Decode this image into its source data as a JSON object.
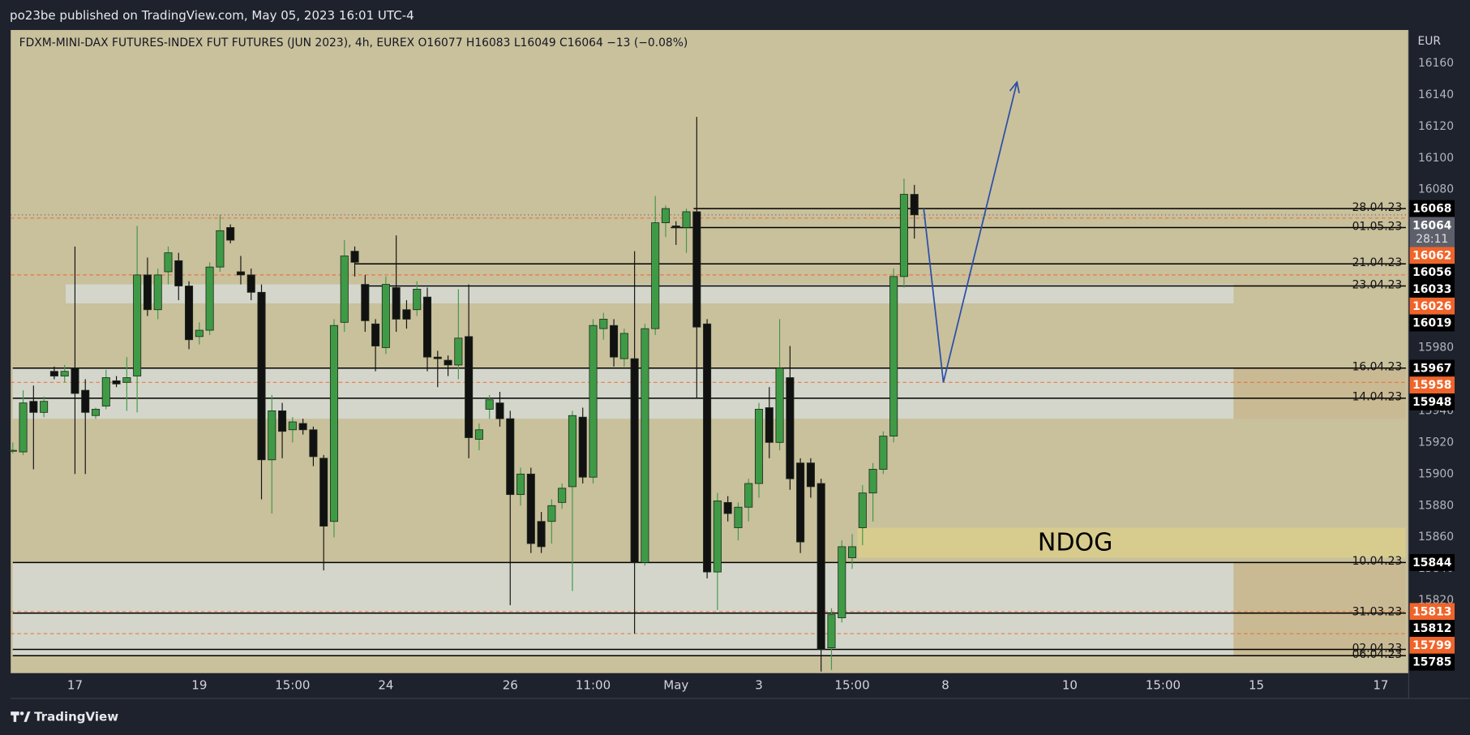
{
  "header": {
    "publisher": "po23be published on TradingView.com, May 05, 2023 16:01 UTC-4",
    "brand": "TradingView"
  },
  "chart_data": {
    "type": "candlestick",
    "title": "FDXM-MINI-DAX FUTURES-INDEX FUT FUTURES (JUN 2023), 4h, EUREX  O16077  H16083  L16049  C16064  −13 (−0.08%)",
    "currency": "EUR",
    "open": [
      15915,
      15914,
      15946,
      15939,
      15965,
      15962,
      15967,
      15953,
      15937,
      15943,
      15959,
      15958,
      15962,
      16026,
      16004,
      16028,
      16035,
      16019,
      15987,
      15991,
      16031,
      16056,
      16028,
      16026,
      16015,
      15909,
      15940,
      15928,
      15932,
      15928,
      15910,
      15870,
      15996,
      16041,
      16020,
      15995,
      15980,
      16018,
      16004,
      16004,
      16012,
      15974,
      15972,
      15969,
      15987,
      15922,
      15941,
      15945,
      15935,
      15887,
      15900,
      15870,
      15870,
      15882,
      15892,
      15936,
      15898,
      15992,
      15994,
      15973,
      15973,
      15844,
      15992,
      16059,
      16057,
      16056,
      16066,
      15995,
      15838,
      15882,
      15866,
      15879,
      15894,
      15942,
      15920,
      15961,
      15907,
      15907,
      15894,
      15790,
      15809,
      15847,
      15866,
      15888,
      15903,
      15924,
      16025,
      16077
    ],
    "high": [
      15920,
      15953,
      15956,
      15949,
      15968,
      15969,
      16044,
      15960,
      15942,
      15966,
      15962,
      15974,
      16057,
      16037,
      16030,
      16044,
      16040,
      16022,
      15996,
      16034,
      16064,
      16058,
      16038,
      16030,
      16020,
      15950,
      15945,
      15936,
      15935,
      15930,
      15912,
      15998,
      16048,
      16044,
      16026,
      15998,
      16025,
      16051,
      16010,
      16022,
      16018,
      15978,
      15975,
      16017,
      16020,
      15932,
      15950,
      15952,
      15940,
      15904,
      15904,
      15876,
      15884,
      15894,
      15940,
      15942,
      15998,
      16002,
      15998,
      15992,
      16041,
      15995,
      16076,
      16070,
      16060,
      16068,
      16126,
      15998,
      15888,
      15886,
      15882,
      15897,
      15945,
      15955,
      15998,
      15981,
      15910,
      15910,
      15897,
      15815,
      15858,
      15862,
      15893,
      15907,
      15927,
      16030,
      16087,
      16083
    ],
    "low": [
      15913,
      15912,
      15903,
      15936,
      15960,
      15958,
      15900,
      15900,
      15935,
      15941,
      15955,
      15940,
      15939,
      16000,
      15998,
      16020,
      16010,
      15979,
      15982,
      15988,
      16028,
      16046,
      16020,
      16010,
      15884,
      15875,
      15910,
      15920,
      15925,
      15905,
      15839,
      15860,
      15990,
      16025,
      15990,
      15965,
      15976,
      15990,
      15992,
      16000,
      15965,
      15955,
      15962,
      15960,
      15910,
      15915,
      15935,
      15930,
      15817,
      15880,
      15850,
      15850,
      15856,
      15878,
      15826,
      15894,
      15894,
      15985,
      15968,
      15968,
      15799,
      15842,
      15988,
      16050,
      16045,
      16040,
      15948,
      15834,
      15814,
      15870,
      15858,
      15870,
      15885,
      15910,
      15915,
      15890,
      15850,
      15885,
      15775,
      15776,
      15806,
      15840,
      15855,
      15870,
      15900,
      15920,
      16018,
      16049
    ],
    "close": [
      15915,
      15945,
      15939,
      15946,
      15962,
      15965,
      15951,
      15939,
      15941,
      15961,
      15957,
      15961,
      16026,
      16004,
      16026,
      16040,
      16019,
      15985,
      15991,
      16031,
      16054,
      16048,
      16026,
      16015,
      15909,
      15940,
      15927,
      15933,
      15928,
      15911,
      15867,
      15994,
      16038,
      16034,
      15997,
      15981,
      16020,
      15998,
      15998,
      16017,
      15974,
      15973,
      15969,
      15986,
      15923,
      15928,
      15947,
      15935,
      15887,
      15900,
      15856,
      15854,
      15880,
      15891,
      15937,
      15898,
      15994,
      15998,
      15974,
      15989,
      15844,
      15992,
      16059,
      16068,
      16056,
      16066,
      15993,
      15838,
      15883,
      15875,
      15879,
      15894,
      15941,
      15920,
      15967,
      15897,
      15857,
      15892,
      15789,
      15811,
      15854,
      15854,
      15888,
      15903,
      15924,
      16025,
      16077,
      16064
    ],
    "up_color": "#3f9a46",
    "down_color": "#111111",
    "ylim": [
      15774,
      16181
    ],
    "yticks": [
      15820,
      15840,
      15860,
      15880,
      15900,
      15920,
      15940,
      15960,
      15980,
      16000,
      16020,
      16040,
      16060,
      16080,
      16100,
      16120,
      16140,
      16160
    ],
    "xlim": [
      -0.2,
      134.7
    ],
    "xticks": [
      {
        "value": 6,
        "label": "17"
      },
      {
        "value": 18,
        "label": "19"
      },
      {
        "value": 27,
        "label": "15:00"
      },
      {
        "value": 36,
        "label": "24"
      },
      {
        "value": 48,
        "label": "26"
      },
      {
        "value": 56,
        "label": "11:00"
      },
      {
        "value": 64,
        "label": "May"
      },
      {
        "value": 72,
        "label": "3"
      },
      {
        "value": 81,
        "label": "15:00"
      },
      {
        "value": 90,
        "label": "8"
      },
      {
        "value": 102,
        "label": "10"
      },
      {
        "value": 111,
        "label": "15:00"
      },
      {
        "value": 120,
        "label": "15"
      },
      {
        "value": 132,
        "label": "17"
      }
    ],
    "zones": [
      {
        "from": 5.1,
        "to": 117.8,
        "top": 16020,
        "bottom": 16008,
        "color": "#d6d9d4"
      },
      {
        "from": 0,
        "to": 117.8,
        "top": 15967,
        "bottom": 15935,
        "color": "#d6d9d4"
      },
      {
        "from": 117.8,
        "to": 134.4,
        "top": 15967,
        "bottom": 15935,
        "color": "#c9b993"
      },
      {
        "from": 0,
        "to": 117.8,
        "top": 15844,
        "bottom": 15785,
        "color": "#d6d9d4"
      },
      {
        "from": 117.8,
        "to": 134.4,
        "top": 15844,
        "bottom": 15785,
        "color": "#c9b993"
      },
      {
        "from": 81.5,
        "to": 134.4,
        "top": 15866,
        "bottom": 15847,
        "color": "#d9ce8c",
        "label": "NDOG"
      }
    ],
    "levels": [
      {
        "name": "28.04.23",
        "value": 16068,
        "from": 65.7
      },
      {
        "name": "01.05.23",
        "value": 16056,
        "from": 63.5
      },
      {
        "name": "21.04.23",
        "value": 16033,
        "from": 33
      },
      {
        "name": "23.04.23",
        "value": 16019,
        "from": 33.6
      },
      {
        "name": "16.04.23",
        "value": 15967,
        "from": 0
      },
      {
        "name": "14.04.23",
        "value": 15948,
        "from": 0
      },
      {
        "name": "10.04.23",
        "value": 15844,
        "from": 0
      },
      {
        "name": "31.03.23",
        "value": 15812,
        "from": 0
      },
      {
        "name": "02.04.23",
        "value": 15789,
        "from": 0
      },
      {
        "name": "06.04.23",
        "value": 15785,
        "from": 0
      }
    ],
    "level_color": "#000000",
    "price_tags": [
      16068,
      16056,
      16033,
      16019,
      15967,
      15948,
      15844,
      15812,
      15785
    ],
    "guides": [
      16062,
      16026,
      15958,
      15813,
      15799
    ],
    "guide_color": "#f0642a",
    "last_price": 16064,
    "countdown": "28:11",
    "projection": {
      "x": [
        87.9,
        89.8,
        96.9
      ],
      "values": [
        16068,
        15958,
        16148
      ],
      "color": "#2b4fa8"
    }
  }
}
